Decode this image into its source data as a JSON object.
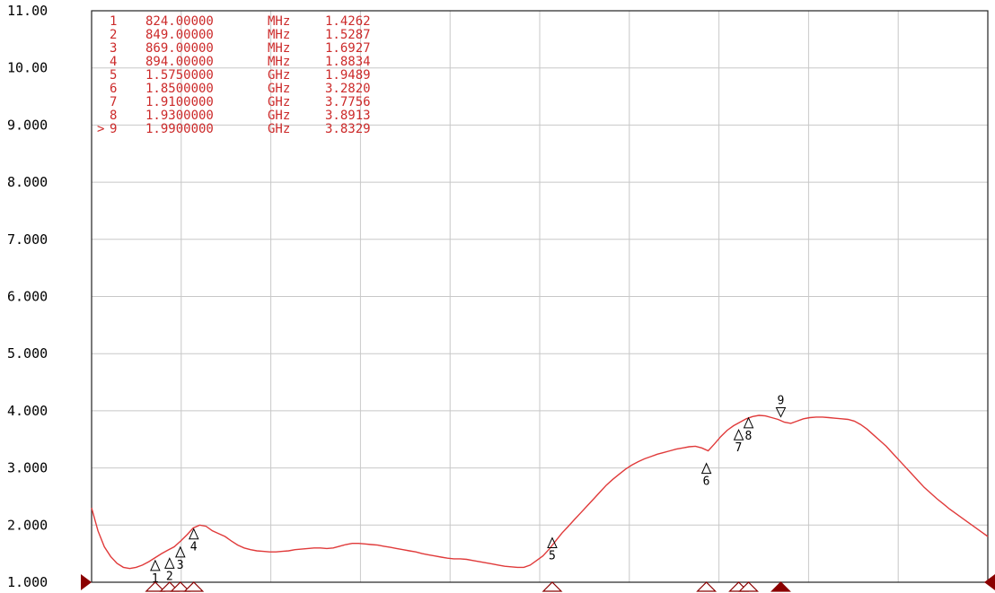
{
  "chart_data": {
    "type": "line",
    "xlabel": "",
    "ylabel": "",
    "ylim": [
      1.0,
      11.0
    ],
    "y_ticks": [
      "1.000",
      "2.000",
      "3.000",
      "4.000",
      "5.000",
      "6.000",
      "7.000",
      "8.000",
      "9.000",
      "10.00",
      "11.00"
    ],
    "x_divisions": 10,
    "grid": true,
    "colors": {
      "trace": "#e03a3a",
      "marker_table": "#cc2a2a",
      "grid": "#c8c8c8",
      "frame": "#222222",
      "reference_arrow": "#8b0000"
    },
    "series": [
      {
        "values": [
          2.3,
          1.9,
          1.62,
          1.45,
          1.33,
          1.26,
          1.24,
          1.26,
          1.3,
          1.36,
          1.43,
          1.5,
          1.56,
          1.62,
          1.72,
          1.83,
          1.95,
          2.0,
          1.98,
          1.9,
          1.85,
          1.8,
          1.72,
          1.65,
          1.6,
          1.57,
          1.55,
          1.54,
          1.53,
          1.53,
          1.54,
          1.55,
          1.57,
          1.58,
          1.59,
          1.6,
          1.6,
          1.59,
          1.6,
          1.63,
          1.66,
          1.68,
          1.68,
          1.67,
          1.66,
          1.65,
          1.63,
          1.61,
          1.59,
          1.57,
          1.55,
          1.53,
          1.5,
          1.48,
          1.46,
          1.44,
          1.42,
          1.41,
          1.41,
          1.4,
          1.38,
          1.36,
          1.34,
          1.32,
          1.3,
          1.28,
          1.27,
          1.26,
          1.26,
          1.3,
          1.38,
          1.46,
          1.58,
          1.72,
          1.86,
          1.98,
          2.1,
          2.22,
          2.34,
          2.46,
          2.58,
          2.7,
          2.8,
          2.89,
          2.98,
          3.05,
          3.11,
          3.16,
          3.2,
          3.24,
          3.27,
          3.3,
          3.33,
          3.35,
          3.37,
          3.38,
          3.35,
          3.3,
          3.42,
          3.55,
          3.66,
          3.74,
          3.8,
          3.86,
          3.9,
          3.92,
          3.91,
          3.88,
          3.85,
          3.8,
          3.78,
          3.82,
          3.86,
          3.88,
          3.89,
          3.89,
          3.88,
          3.87,
          3.86,
          3.85,
          3.82,
          3.76,
          3.68,
          3.58,
          3.48,
          3.38,
          3.26,
          3.14,
          3.02,
          2.9,
          2.78,
          2.66,
          2.56,
          2.46,
          2.37,
          2.28,
          2.2,
          2.12,
          2.04,
          1.96,
          1.88,
          1.8
        ]
      }
    ],
    "markers": [
      {
        "id": "1",
        "prefix": " ",
        "freq": "824.00000",
        "unit": "MHz",
        "value": "1.4262",
        "pos_fraction": 0.071,
        "y": 1.4262
      },
      {
        "id": "2",
        "prefix": " ",
        "freq": "849.00000",
        "unit": "MHz",
        "value": "1.5287",
        "pos_fraction": 0.087,
        "y": 1.5287
      },
      {
        "id": "3",
        "prefix": " ",
        "freq": "869.00000",
        "unit": "MHz",
        "value": "1.6927",
        "pos_fraction": 0.099,
        "y": 1.6927
      },
      {
        "id": "4",
        "prefix": " ",
        "freq": "894.00000",
        "unit": "MHz",
        "value": "1.8834",
        "pos_fraction": 0.114,
        "y": 1.8834
      },
      {
        "id": "5",
        "prefix": " ",
        "freq": "1.5750000",
        "unit": "GHz",
        "value": "1.9489",
        "pos_fraction": 0.514,
        "y": 1.9489
      },
      {
        "id": "6",
        "prefix": " ",
        "freq": "1.8500000",
        "unit": "GHz",
        "value": "3.2820",
        "pos_fraction": 0.686,
        "y": 3.282
      },
      {
        "id": "7",
        "prefix": " ",
        "freq": "1.9100000",
        "unit": "GHz",
        "value": "3.7756",
        "pos_fraction": 0.722,
        "y": 3.7756
      },
      {
        "id": "8",
        "prefix": " ",
        "freq": "1.9300000",
        "unit": "GHz",
        "value": "3.8913",
        "pos_fraction": 0.733,
        "y": 3.8913
      },
      {
        "id": "9",
        "prefix": ">",
        "freq": "1.9900000",
        "unit": "GHz",
        "value": "3.8329",
        "pos_fraction": 0.769,
        "y": 3.8329
      }
    ],
    "reference_level": 1.0
  }
}
